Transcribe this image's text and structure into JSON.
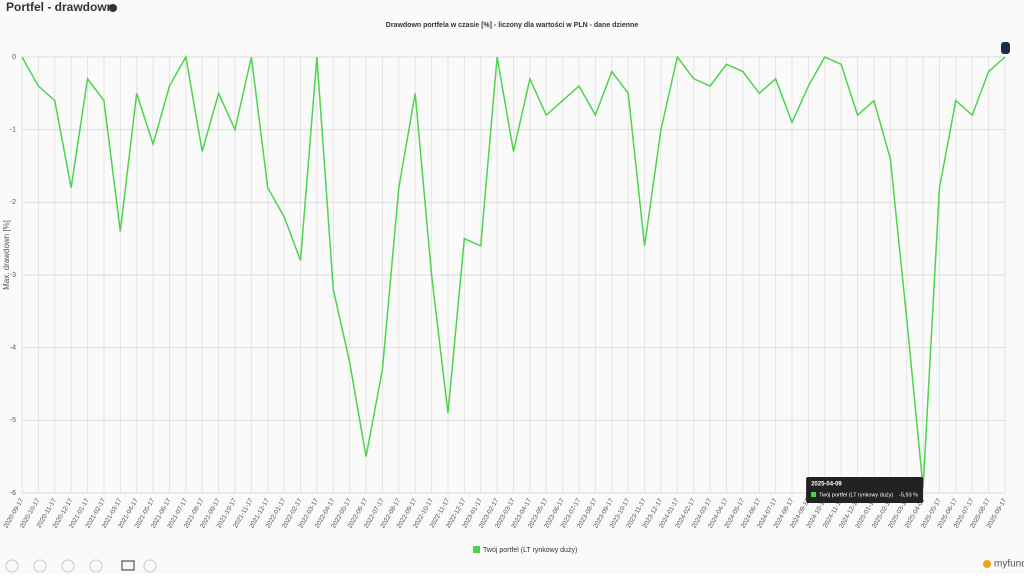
{
  "header": {
    "title": "Portfel - drawdown"
  },
  "chart_data": {
    "type": "line",
    "title": "Drawdown portfela w czasie [%] - liczony dla wartości w PLN - dane dzienne",
    "y_label": "Max. drawdown [%]",
    "categories": [
      "2020-09-17",
      "2020-10-17",
      "2020-11-17",
      "2020-12-17",
      "2021-01-17",
      "2021-02-17",
      "2021-03-17",
      "2021-04-17",
      "2021-05-17",
      "2021-06-17",
      "2021-07-17",
      "2021-08-17",
      "2021-09-17",
      "2021-10-17",
      "2021-11-17",
      "2021-12-17",
      "2022-01-17",
      "2022-02-17",
      "2022-03-17",
      "2022-04-17",
      "2022-05-17",
      "2022-06-17",
      "2022-07-17",
      "2022-08-17",
      "2022-09-17",
      "2022-10-17",
      "2022-11-17",
      "2022-12-17",
      "2023-01-17",
      "2023-02-17",
      "2023-03-17",
      "2023-04-17",
      "2023-05-17",
      "2023-06-17",
      "2023-07-17",
      "2023-08-17",
      "2023-09-17",
      "2023-10-17",
      "2023-11-17",
      "2023-12-17",
      "2024-01-17",
      "2024-02-17",
      "2024-03-17",
      "2024-04-17",
      "2024-05-17",
      "2024-06-17",
      "2024-07-17",
      "2024-08-17",
      "2024-09-17",
      "2024-10-17",
      "2024-11-17",
      "2024-12-17",
      "2025-01-17",
      "2025-02-17",
      "2025-03-17",
      "2025-04-09",
      "2025-05-17",
      "2025-06-17",
      "2025-07-17",
      "2025-08-17",
      "2025-09-17"
    ],
    "series": [
      {
        "name": "Twój portfel (LT rynkowy duży)",
        "color": "#4cd44c",
        "values": [
          0,
          -0.4,
          -0.6,
          -1.8,
          -0.3,
          -0.6,
          -2.4,
          -0.5,
          -1.2,
          -0.4,
          0,
          -1.3,
          -0.5,
          -1.0,
          0,
          -1.8,
          -2.2,
          -2.8,
          0,
          -3.2,
          -4.2,
          -5.5,
          -4.3,
          -1.8,
          -0.5,
          -3.0,
          -4.9,
          -2.5,
          -2.6,
          0,
          -1.3,
          -0.3,
          -0.8,
          -0.6,
          -0.4,
          -0.8,
          -0.2,
          -0.5,
          -2.6,
          -1.0,
          0,
          -0.3,
          -0.4,
          -0.1,
          -0.2,
          -0.5,
          -0.3,
          -0.9,
          -0.4,
          0,
          -0.1,
          -0.8,
          -0.6,
          -1.4,
          -3.6,
          -5.93,
          -1.8,
          -0.6,
          -0.8,
          -0.2,
          0
        ]
      }
    ],
    "ylim": [
      -6,
      0
    ],
    "yticks": [
      0,
      -1,
      -2,
      -3,
      -4,
      -5,
      -6
    ],
    "grid": true,
    "tooltip": {
      "index": 55,
      "value_label": "-5,93 %"
    }
  },
  "footer": {
    "logo": "myfund"
  }
}
